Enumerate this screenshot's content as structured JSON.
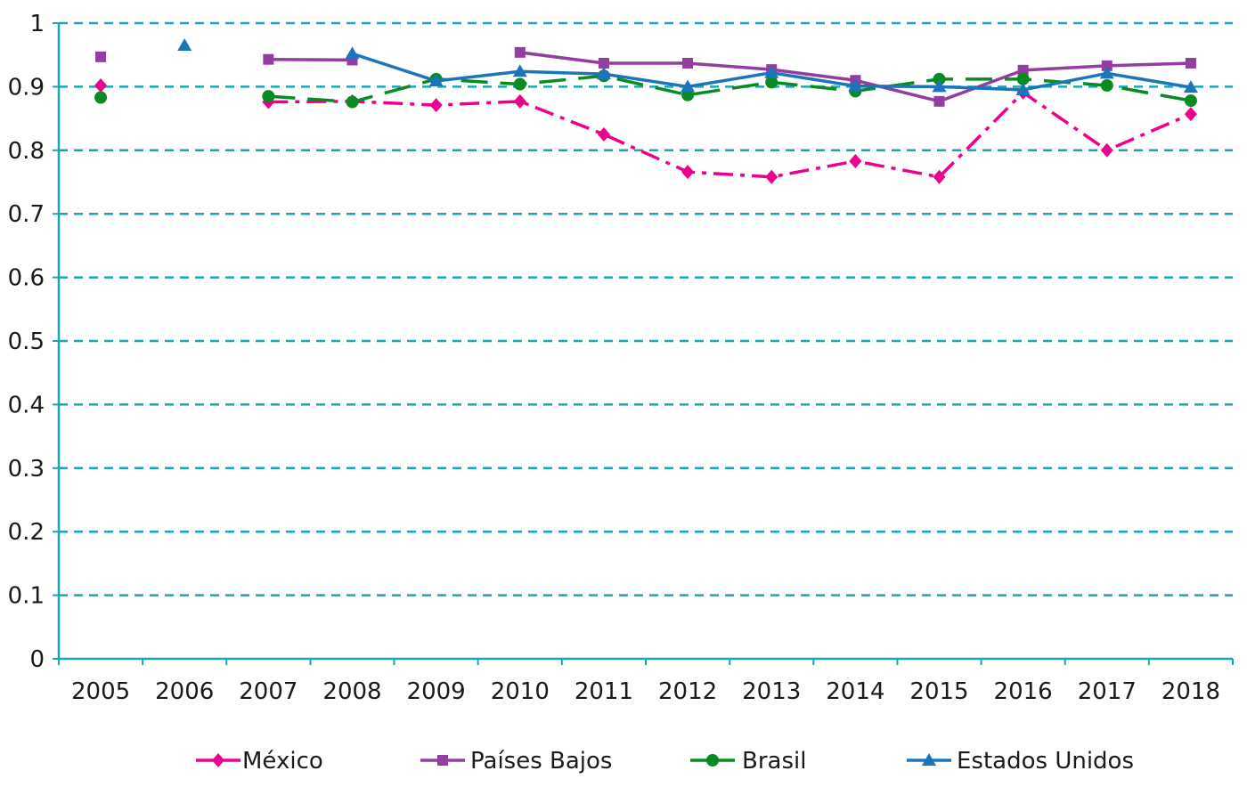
{
  "chart_data": {
    "type": "line",
    "title": "",
    "xlabel": "",
    "ylabel": "",
    "x": [
      "2005",
      "2006",
      "2007",
      "2008",
      "2009",
      "2010",
      "2011",
      "2012",
      "2013",
      "2014",
      "2015",
      "2016",
      "2017",
      "2018"
    ],
    "ylim": [
      0,
      1
    ],
    "yticks": [
      "0",
      "0.1",
      "0.2",
      "0.3",
      "0.4",
      "0.5",
      "0.6",
      "0.7",
      "0.8",
      "0.9",
      "1"
    ],
    "grid": "horizontal dashed",
    "legend_position": "bottom",
    "series": [
      {
        "name": "México",
        "color": "#ec008c",
        "marker": "diamond",
        "dash": "dash-dot",
        "values": [
          0.902,
          null,
          0.876,
          0.877,
          0.871,
          0.877,
          0.825,
          0.766,
          0.758,
          0.783,
          0.758,
          0.891,
          0.8,
          0.857
        ]
      },
      {
        "name": "Países Bajos",
        "color": "#923ea0",
        "marker": "square",
        "dash": "solid",
        "values": [
          0.947,
          null,
          0.943,
          0.942,
          null,
          0.954,
          0.937,
          0.937,
          0.927,
          0.91,
          0.877,
          0.926,
          0.933,
          0.937
        ]
      },
      {
        "name": "Brasil",
        "color": "#0a8a22",
        "marker": "circle",
        "dash": "long-dash",
        "values": [
          0.883,
          null,
          0.885,
          0.876,
          0.912,
          0.904,
          0.917,
          0.887,
          0.907,
          0.893,
          0.912,
          0.912,
          0.902,
          0.878
        ]
      },
      {
        "name": "Estados Unidos",
        "color": "#1b75bb",
        "marker": "triangle",
        "dash": "solid",
        "values": [
          null,
          0.965,
          null,
          0.952,
          0.909,
          0.924,
          0.92,
          0.9,
          0.922,
          0.901,
          0.9,
          0.895,
          0.921,
          0.899
        ]
      }
    ]
  }
}
